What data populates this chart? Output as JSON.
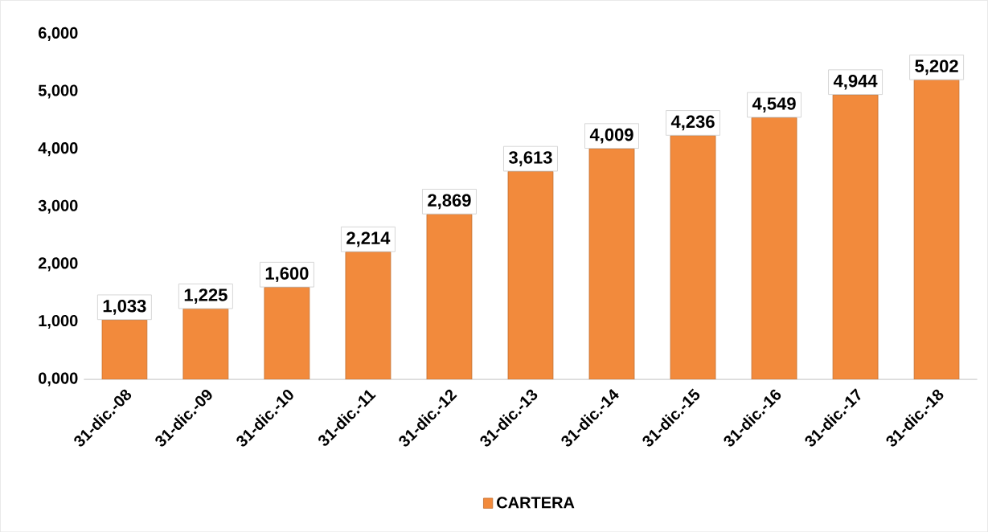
{
  "chart_data": {
    "type": "bar",
    "categories": [
      "31-dic.-08",
      "31-dic.-09",
      "31-dic.-10",
      "31-dic.-11",
      "31-dic.-12",
      "31-dic.-13",
      "31-dic.-14",
      "31-dic.-15",
      "31-dic.-16",
      "31-dic.-17",
      "31-dic.-18"
    ],
    "series": [
      {
        "name": "CARTERA",
        "color": "#f28a3c",
        "values": [
          1033,
          1225,
          1600,
          2214,
          2869,
          3613,
          4009,
          4236,
          4549,
          4944,
          5202
        ],
        "value_labels": [
          "1,033",
          "1,225",
          "1,600",
          "2,214",
          "2,869",
          "3,613",
          "4,009",
          "4,236",
          "4,549",
          "4,944",
          "5,202"
        ]
      }
    ],
    "ylim": [
      0,
      6000
    ],
    "yticks": [
      {
        "value": 0,
        "label": "0,000"
      },
      {
        "value": 1000,
        "label": "1,000"
      },
      {
        "value": 2000,
        "label": "2,000"
      },
      {
        "value": 3000,
        "label": "3,000"
      },
      {
        "value": 4000,
        "label": "4,000"
      },
      {
        "value": 5000,
        "label": "5,000"
      },
      {
        "value": 6000,
        "label": "6,000"
      }
    ],
    "grid": false,
    "legend": "bottom"
  }
}
